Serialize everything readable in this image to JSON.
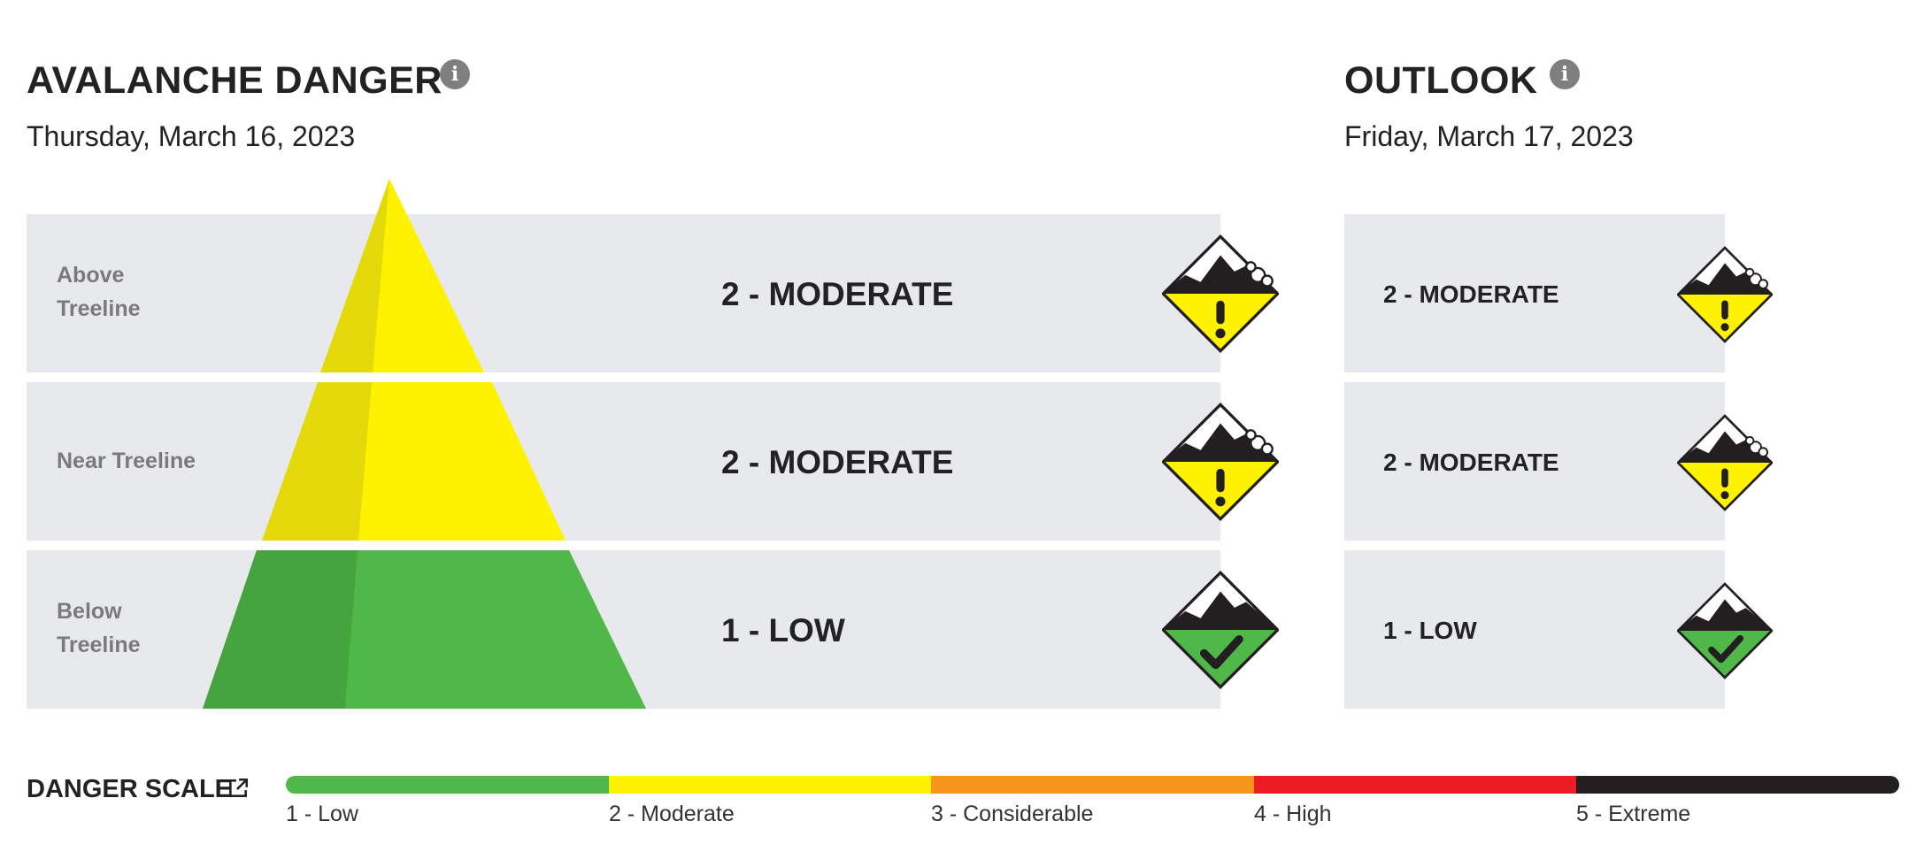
{
  "danger": {
    "title": "AVALANCHE DANGER",
    "date": "Thursday, March 16, 2023",
    "rows": [
      {
        "elevation": "Above\nTreeline",
        "rating": "2 - MODERATE",
        "level": 2,
        "icon": "moderate-danger-icon"
      },
      {
        "elevation": "Near Treeline",
        "rating": "2 - MODERATE",
        "level": 2,
        "icon": "moderate-danger-icon"
      },
      {
        "elevation": "Below\nTreeline",
        "rating": "1 - LOW",
        "level": 1,
        "icon": "low-danger-icon"
      }
    ]
  },
  "outlook": {
    "title": "OUTLOOK",
    "date": "Friday, March 17, 2023",
    "rows": [
      {
        "rating": "2 - MODERATE",
        "level": 2,
        "icon": "moderate-danger-icon"
      },
      {
        "rating": "2 - MODERATE",
        "level": 2,
        "icon": "moderate-danger-icon"
      },
      {
        "rating": "1 - LOW",
        "level": 1,
        "icon": "low-danger-icon"
      }
    ]
  },
  "scale": {
    "title": "DANGER SCALE",
    "levels": [
      {
        "label": "1 - Low",
        "color": "#50b848"
      },
      {
        "label": "2 - Moderate",
        "color": "#fff200"
      },
      {
        "label": "3 - Considerable",
        "color": "#f7941e"
      },
      {
        "label": "4 - High",
        "color": "#ed1c24"
      },
      {
        "label": "5 - Extreme",
        "color": "#231f20"
      }
    ]
  },
  "colors": {
    "moderate": "#fff200",
    "moderate_shade": "#e4d90a",
    "low": "#50b848",
    "low_shade": "#46a43f",
    "row_bg": "#e7e9ec"
  }
}
